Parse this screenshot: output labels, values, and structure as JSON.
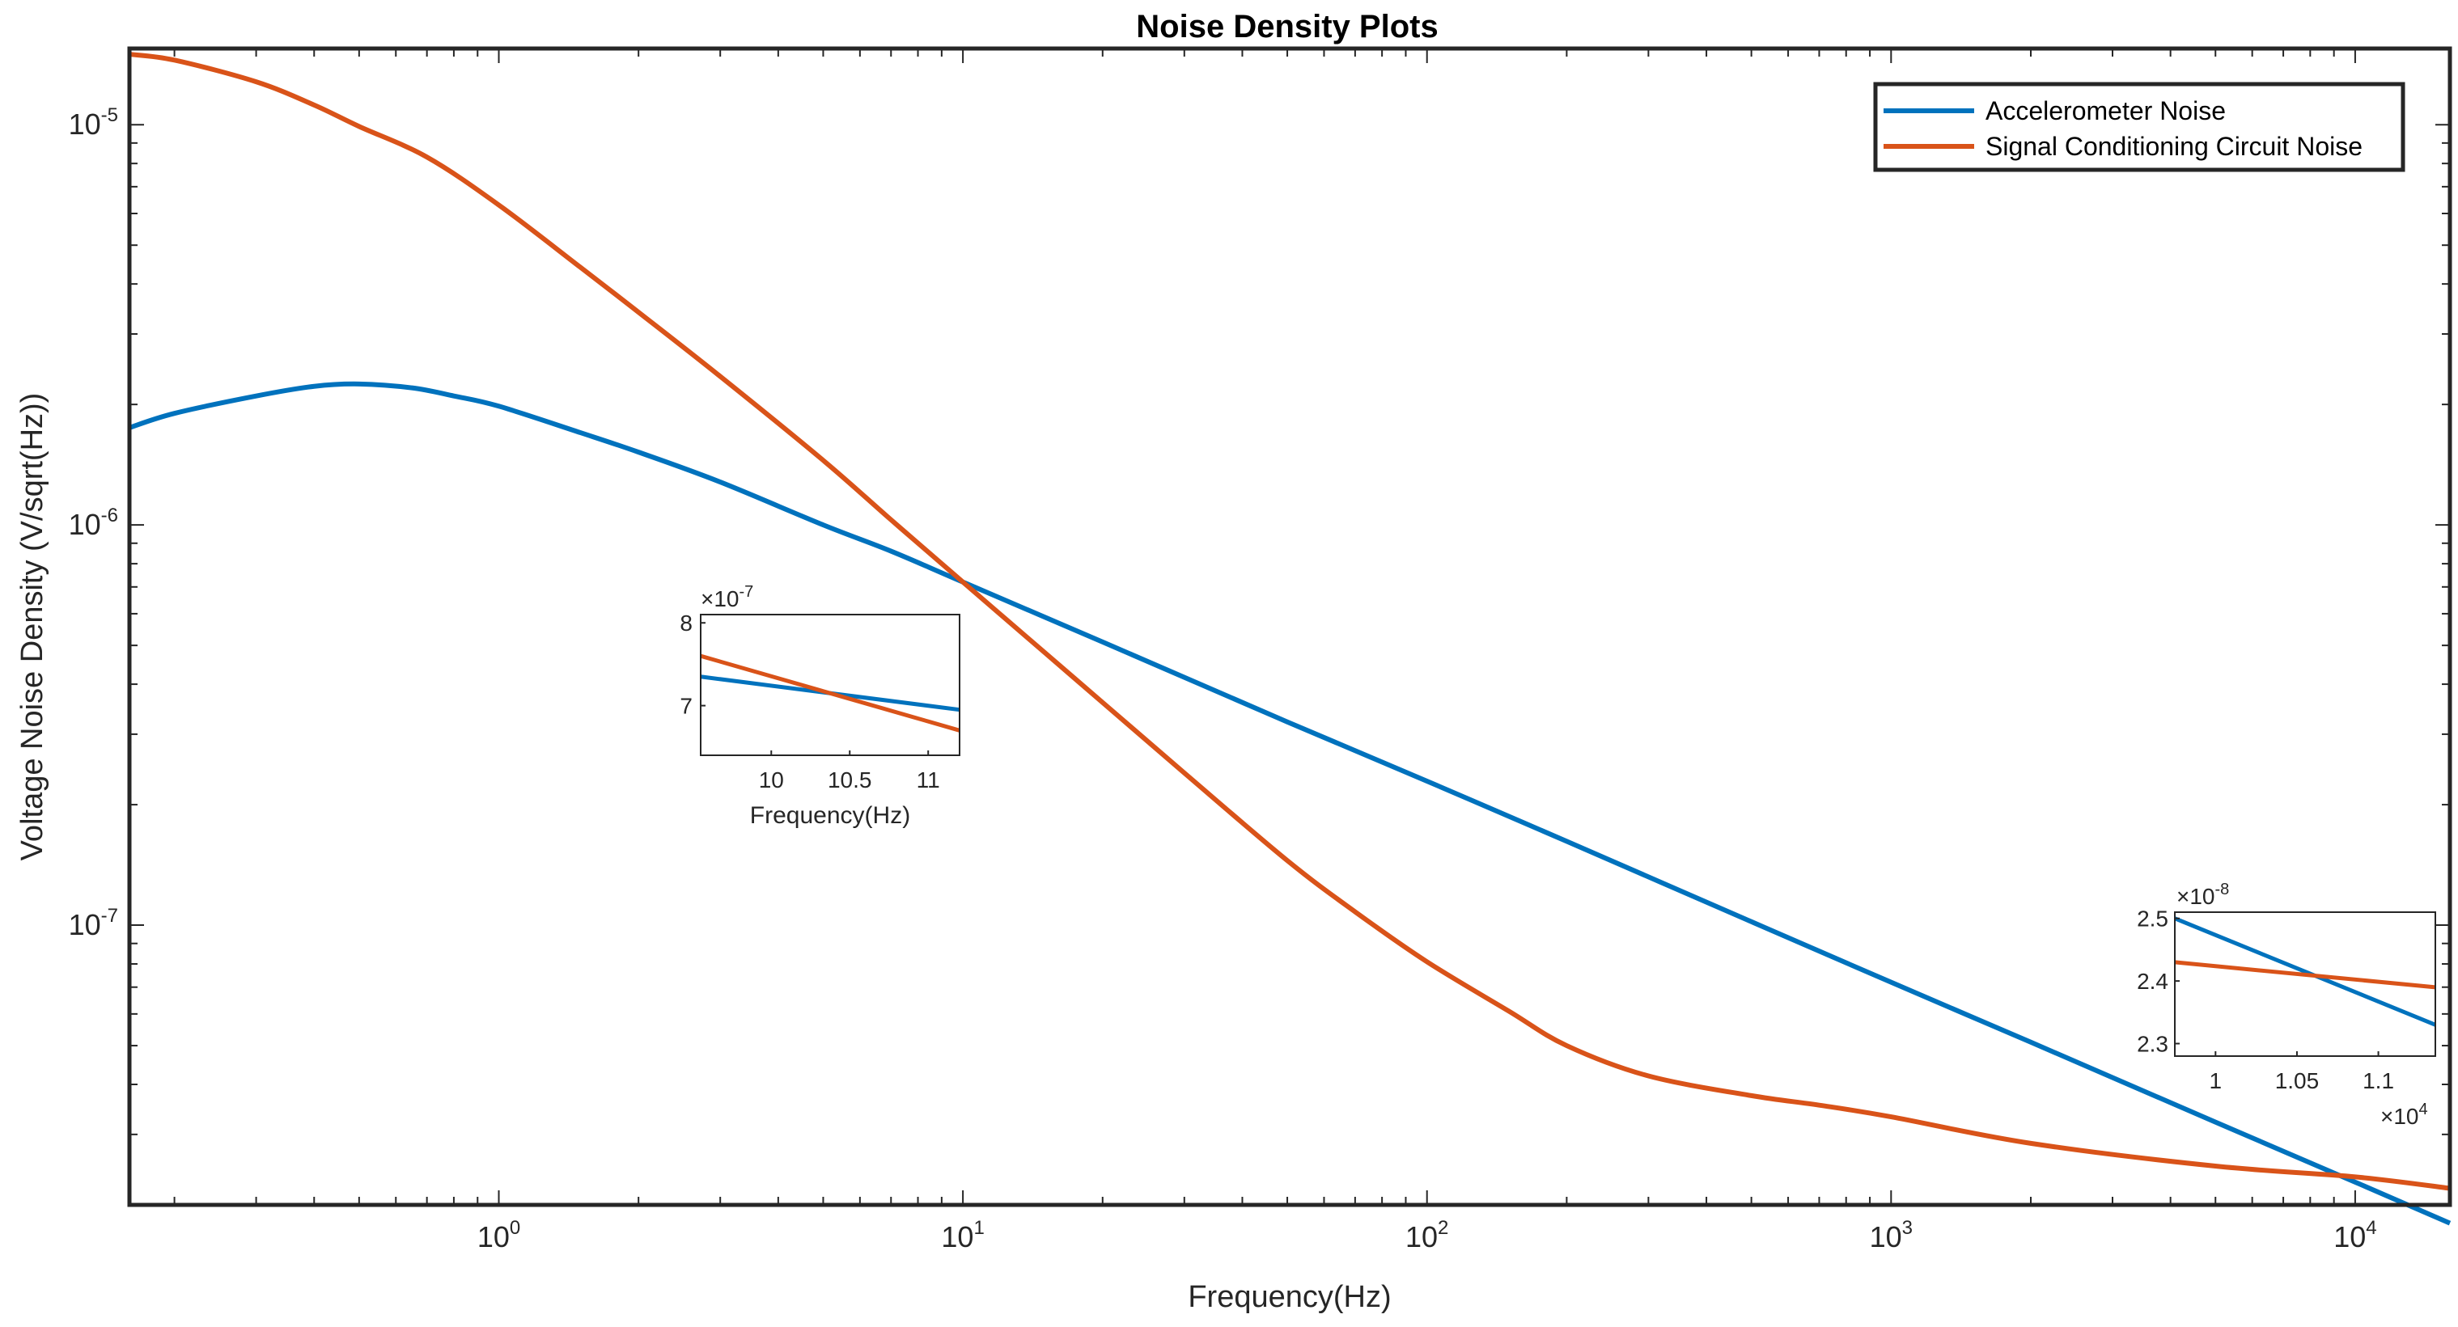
{
  "chart_data": {
    "type": "line",
    "title": "Noise Density Plots",
    "xlabel": "Frequency(Hz)",
    "ylabel": "Voltage Noise Density (V/sqrt(Hz))",
    "xscale": "log",
    "yscale": "log",
    "xlim": [
      0.16,
      16000
    ],
    "ylim": [
      2e-08,
      1.55e-05
    ],
    "x_ticks": [
      {
        "value": 1,
        "base": "10",
        "exp": "0"
      },
      {
        "value": 10,
        "base": "10",
        "exp": "1"
      },
      {
        "value": 100,
        "base": "10",
        "exp": "2"
      },
      {
        "value": 1000,
        "base": "10",
        "exp": "3"
      },
      {
        "value": 10000,
        "base": "10",
        "exp": "4"
      }
    ],
    "y_ticks": [
      {
        "value": 1e-07,
        "base": "10",
        "exp": "-7"
      },
      {
        "value": 1e-06,
        "base": "10",
        "exp": "-6"
      },
      {
        "value": 1e-05,
        "base": "10",
        "exp": "-5"
      }
    ],
    "legend_position": "top-right",
    "series": [
      {
        "name": "Accelerometer Noise",
        "color": "#0072BD",
        "x": [
          0.16,
          0.2,
          0.3,
          0.4,
          0.5,
          0.65,
          0.8,
          1,
          1.5,
          2,
          3,
          5,
          7,
          10,
          20,
          50,
          100,
          200,
          500,
          1000,
          2000,
          5000,
          10000,
          16000
        ],
        "y": [
          1.75e-06,
          1.9e-06,
          2.1e-06,
          2.22e-06,
          2.25e-06,
          2.2e-06,
          2.1e-06,
          1.98e-06,
          1.7e-06,
          1.52e-06,
          1.28e-06,
          1e-06,
          8.6e-07,
          7.2e-07,
          5.1e-07,
          3.22e-07,
          2.29e-07,
          1.62e-07,
          1.02e-07,
          7.2e-08,
          5.1e-08,
          3.22e-08,
          2.28e-08,
          1.8e-08
        ]
      },
      {
        "name": "Signal Conditioning Circuit Noise",
        "color": "#D95319",
        "x": [
          0.16,
          0.2,
          0.3,
          0.4,
          0.5,
          0.7,
          1,
          1.5,
          2,
          3,
          5,
          7,
          10,
          15,
          20,
          30,
          50,
          70,
          100,
          150,
          200,
          300,
          500,
          700,
          1000,
          2000,
          5000,
          10000,
          16000
        ],
        "y": [
          1.5e-05,
          1.45e-05,
          1.28e-05,
          1.12e-05,
          9.9e-06,
          8.3e-06,
          6.3e-06,
          4.4e-06,
          3.4e-06,
          2.35e-06,
          1.45e-06,
          1.03e-06,
          7.2e-07,
          4.8e-07,
          3.6e-07,
          2.4e-07,
          1.45e-07,
          1.08e-07,
          8.1e-08,
          6.1e-08,
          5e-08,
          4.2e-08,
          3.75e-08,
          3.55e-08,
          3.32e-08,
          2.85e-08,
          2.5e-08,
          2.35e-08,
          2.2e-08
        ]
      }
    ],
    "insets": [
      {
        "xlabel": "Frequency(Hz)",
        "multiplier_base": "10",
        "multiplier_exp": "-7",
        "xlim": [
          9.55,
          11.2
        ],
        "ylim": [
          6.4,
          8.1
        ],
        "x_ticks": [
          "10",
          "10.5",
          "11"
        ],
        "y_ticks": [
          "7",
          "8"
        ],
        "series": [
          {
            "name": "Accelerometer Noise",
            "color": "#0072BD",
            "x": [
              9.55,
              11.2
            ],
            "y": [
              7.35,
              6.95
            ]
          },
          {
            "name": "Signal Conditioning Circuit Noise",
            "color": "#D95319",
            "x": [
              9.55,
              11.2
            ],
            "y": [
              7.6,
              6.7
            ]
          }
        ]
      },
      {
        "xlabel_multiplier_base": "10",
        "xlabel_multiplier_exp": "4",
        "multiplier_base": "10",
        "multiplier_exp": "-8",
        "xlim": [
          0.975,
          1.135
        ],
        "ylim": [
          2.28,
          2.51
        ],
        "x_ticks": [
          "1",
          "1.05",
          "1.1"
        ],
        "y_ticks": [
          "2.3",
          "2.4",
          "2.5"
        ],
        "series": [
          {
            "name": "Accelerometer Noise",
            "color": "#0072BD",
            "x": [
              0.975,
              1.135
            ],
            "y": [
              2.5,
              2.33
            ]
          },
          {
            "name": "Signal Conditioning Circuit Noise",
            "color": "#D95319",
            "x": [
              0.975,
              1.135
            ],
            "y": [
              2.43,
              2.39
            ]
          }
        ]
      }
    ]
  }
}
